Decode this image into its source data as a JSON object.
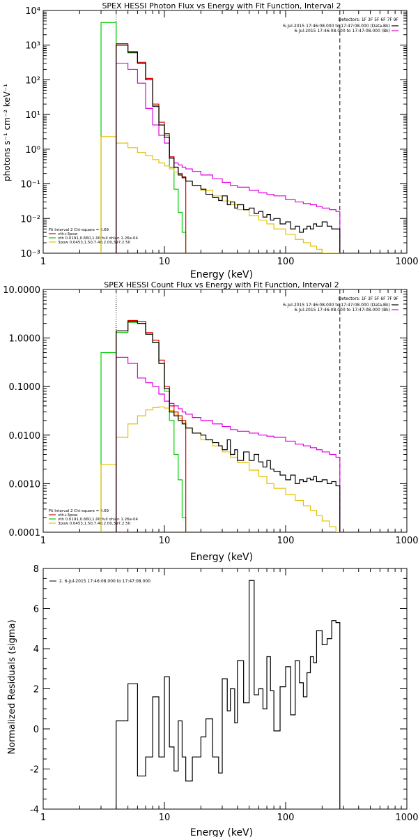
{
  "figure": {
    "panel1": {
      "title": "SPEX HESSI Photon Flux vs Energy with Fit Function, Interval 2",
      "xlabel": "Energy (keV)",
      "ylabel": "photons s⁻¹ cm⁻² keV⁻¹",
      "detectors": "Detectors: 1F 3F 5F 6F 7F 9F",
      "legend_right": [
        {
          "text": "6-Jul-2015 17:46:08.000 to 17:47:08.000 (Data-Bk)",
          "color": "#000000"
        },
        {
          "text": "6-Jul-2015 17:46:08.000 to 17:47:08.000 (Bk)",
          "color": "#e000e0"
        }
      ],
      "legend_left": [
        {
          "text": "Fit Interval  2    Chi-square = 0.69",
          "color": null
        },
        {
          "text": "vth+3pow",
          "color": "#dd0000"
        },
        {
          "text": "vth 0.0191,0.660,1.00  full ohian 1.26e-04",
          "color": "#00cc00"
        },
        {
          "text": "3pow 0.0453,1.50,7.40,2.00,397,2.50",
          "color": "#e6c000"
        }
      ]
    },
    "panel2": {
      "title": "SPEX HESSI Count Flux vs Energy with Fit Function, Interval 2",
      "xlabel": "Energy (keV)",
      "detectors": "Detectors: 1F 3F 5F 6F 7F 9F",
      "legend_right": [
        {
          "text": "6-Jul-2015 17:46:08.000 to 17:47:08.000 (Data-Bk)",
          "color": "#000000"
        },
        {
          "text": "6-Jul-2015 17:46:08.000 to 17:47:08.000 (Bk)",
          "color": "#e000e0"
        }
      ],
      "legend_left": [
        {
          "text": "Fit Interval  2    Chi-square = 0.69",
          "color": null
        },
        {
          "text": "vth+3pow",
          "color": "#dd0000"
        },
        {
          "text": "vth 0.0191,0.660,1.00  full ohian 1.26e-04",
          "color": "#00cc00"
        },
        {
          "text": "3pow 0.0453,1.50,7.40,2.00,397,2.50",
          "color": "#e6c000"
        }
      ]
    },
    "panel3": {
      "xlabel": "Energy (keV)",
      "ylabel": "Normalized Residuals (sigma)",
      "legend": "2. 6-Jul-2015 17:46:08.000 to 17:47:08.000"
    }
  },
  "chart_data": [
    {
      "type": "line",
      "step": true,
      "title": "SPEX HESSI Photon Flux vs Energy with Fit Function, Interval 2",
      "xlabel": "Energy (keV)",
      "ylabel": "photons s⁻¹ cm⁻² keV⁻¹",
      "xscale": "log",
      "yscale": "log",
      "xlim": [
        1,
        1000
      ],
      "ylim": [
        0.001,
        10000
      ],
      "xticks": [
        "1",
        "10",
        "100",
        "1000"
      ],
      "yticks": [
        "10⁻³",
        "10⁻²",
        "10⁻¹",
        "10⁰",
        "10¹",
        "10²",
        "10³",
        "10⁴"
      ],
      "vlines": [
        {
          "x": 4,
          "style": "dotted"
        },
        {
          "x": 280,
          "style": "dashed"
        }
      ],
      "series": [
        {
          "name": "vth",
          "color": "#00cc00",
          "edges": [
            3,
            4,
            5,
            6,
            7,
            8,
            9,
            10,
            11,
            12,
            13,
            14,
            15
          ],
          "values": [
            4500,
            1000,
            600,
            300,
            100,
            18,
            5,
            2.5,
            0.3,
            0.07,
            0.015,
            0.004
          ]
        },
        {
          "name": "3pow",
          "color": "#e6c000",
          "edges": [
            3,
            4,
            5,
            6,
            7,
            8,
            9,
            10,
            11,
            12,
            13,
            14,
            15,
            17,
            20,
            25,
            30,
            35,
            40,
            50,
            60,
            70,
            80,
            100,
            120,
            140,
            160,
            180,
            200,
            230,
            260,
            280
          ],
          "values": [
            2.3,
            1.5,
            1.1,
            0.8,
            0.65,
            0.5,
            0.4,
            0.33,
            0.27,
            0.22,
            0.18,
            0.15,
            0.12,
            0.09,
            0.065,
            0.045,
            0.032,
            0.025,
            0.018,
            0.012,
            0.009,
            0.007,
            0.005,
            0.0035,
            0.0025,
            0.002,
            0.0016,
            0.0013,
            0.001,
            0.0008,
            0.0007
          ]
        },
        {
          "name": "Bk",
          "color": "#e000e0",
          "edges": [
            4,
            5,
            6,
            7,
            8,
            9,
            10,
            11,
            12,
            13,
            14,
            15,
            17,
            20,
            25,
            30,
            35,
            40,
            50,
            60,
            70,
            80,
            100,
            120,
            140,
            160,
            180,
            200,
            230,
            260,
            280
          ],
          "values": [
            300,
            200,
            80,
            15,
            5,
            2.5,
            1.5,
            0.6,
            0.4,
            0.35,
            0.3,
            0.27,
            0.23,
            0.18,
            0.14,
            0.11,
            0.09,
            0.08,
            0.065,
            0.055,
            0.05,
            0.045,
            0.035,
            0.03,
            0.027,
            0.025,
            0.022,
            0.02,
            0.018,
            0.016
          ]
        },
        {
          "name": "vth+3pow",
          "color": "#dd0000",
          "edges": [
            4,
            5,
            6,
            7,
            8,
            9,
            10,
            11,
            12,
            13,
            14,
            15
          ],
          "values": [
            1100,
            650,
            320,
            110,
            20,
            6,
            2.8,
            0.6,
            0.3,
            0.2,
            0.16
          ]
        },
        {
          "name": "Data-Bk",
          "color": "#000000",
          "edges": [
            4,
            5,
            6,
            7,
            8,
            9,
            10,
            11,
            12,
            13,
            14,
            15,
            17,
            20,
            22,
            25,
            28,
            30,
            33,
            35,
            38,
            40,
            45,
            50,
            55,
            60,
            65,
            70,
            75,
            80,
            90,
            100,
            110,
            120,
            130,
            140,
            150,
            160,
            170,
            180,
            200,
            220,
            240,
            260,
            280
          ],
          "values": [
            1000,
            620,
            300,
            100,
            17,
            5,
            2.2,
            0.55,
            0.3,
            0.18,
            0.15,
            0.12,
            0.09,
            0.07,
            0.05,
            0.04,
            0.033,
            0.045,
            0.025,
            0.03,
            0.02,
            0.025,
            0.018,
            0.02,
            0.014,
            0.016,
            0.011,
            0.013,
            0.009,
            0.01,
            0.007,
            0.008,
            0.005,
            0.006,
            0.004,
            0.005,
            0.006,
            0.005,
            0.007,
            0.006,
            0.008,
            0.006,
            0.005,
            0.005
          ]
        }
      ]
    },
    {
      "type": "line",
      "step": true,
      "title": "SPEX HESSI Count Flux vs Energy with Fit Function, Interval 2",
      "xlabel": "Energy (keV)",
      "xscale": "log",
      "yscale": "log",
      "xlim": [
        1,
        1000
      ],
      "ylim": [
        0.0001,
        10
      ],
      "xticks": [
        "1",
        "10",
        "100",
        "1000"
      ],
      "yticks": [
        "0.0001",
        "0.0010",
        "0.0100",
        "0.1000",
        "1.0000",
        "10.0000"
      ],
      "vlines": [
        {
          "x": 4,
          "style": "dotted"
        },
        {
          "x": 280,
          "style": "dashed"
        }
      ],
      "series": [
        {
          "name": "vth",
          "color": "#00cc00",
          "edges": [
            3,
            4,
            5,
            6,
            7,
            8,
            9,
            10,
            11,
            12,
            13,
            14,
            15
          ],
          "values": [
            0.5,
            1.3,
            2.1,
            2.0,
            1.2,
            0.8,
            0.3,
            0.08,
            0.02,
            0.004,
            0.0012,
            0.0002
          ]
        },
        {
          "name": "3pow",
          "color": "#e6c000",
          "edges": [
            3,
            4,
            5,
            6,
            7,
            8,
            9,
            10,
            11,
            12,
            13,
            14,
            15,
            17,
            20,
            25,
            30,
            35,
            40,
            50,
            60,
            70,
            80,
            100,
            120,
            140,
            160,
            180,
            200,
            230,
            260,
            280
          ],
          "values": [
            0.0025,
            0.009,
            0.017,
            0.025,
            0.033,
            0.037,
            0.038,
            0.036,
            0.032,
            0.027,
            0.022,
            0.018,
            0.014,
            0.011,
            0.008,
            0.006,
            0.0045,
            0.0035,
            0.0027,
            0.0019,
            0.0014,
            0.001,
            0.0008,
            0.0006,
            0.00045,
            0.00035,
            0.00028,
            0.00022,
            0.00017,
            0.00013,
            0.0001
          ]
        },
        {
          "name": "Bk",
          "color": "#e000e0",
          "edges": [
            4,
            5,
            6,
            7,
            8,
            9,
            10,
            11,
            12,
            13,
            14,
            15,
            17,
            20,
            25,
            30,
            35,
            40,
            50,
            60,
            70,
            80,
            100,
            120,
            140,
            160,
            180,
            200,
            230,
            260,
            280
          ],
          "values": [
            0.4,
            0.3,
            0.15,
            0.12,
            0.1,
            0.07,
            0.05,
            0.045,
            0.04,
            0.035,
            0.03,
            0.027,
            0.023,
            0.02,
            0.017,
            0.015,
            0.013,
            0.012,
            0.011,
            0.01,
            0.0095,
            0.009,
            0.0075,
            0.0065,
            0.006,
            0.0055,
            0.005,
            0.0045,
            0.004,
            0.0035
          ]
        },
        {
          "name": "vth+3pow",
          "color": "#dd0000",
          "edges": [
            4,
            5,
            6,
            7,
            8,
            9,
            10,
            11,
            12,
            13,
            14,
            15
          ],
          "values": [
            1.4,
            2.3,
            2.2,
            1.3,
            0.9,
            0.35,
            0.1,
            0.04,
            0.03,
            0.025,
            0.02
          ]
        },
        {
          "name": "Data-Bk",
          "color": "#000000",
          "edges": [
            4,
            5,
            6,
            7,
            8,
            9,
            10,
            11,
            12,
            13,
            14,
            15,
            17,
            20,
            22,
            25,
            28,
            30,
            33,
            35,
            38,
            40,
            45,
            50,
            55,
            60,
            65,
            70,
            75,
            80,
            90,
            100,
            110,
            120,
            130,
            140,
            150,
            160,
            170,
            180,
            200,
            220,
            240,
            260,
            280
          ],
          "values": [
            1.4,
            2.2,
            2.0,
            1.2,
            0.8,
            0.3,
            0.09,
            0.03,
            0.025,
            0.02,
            0.017,
            0.014,
            0.011,
            0.01,
            0.008,
            0.007,
            0.006,
            0.005,
            0.008,
            0.004,
            0.005,
            0.003,
            0.0045,
            0.003,
            0.004,
            0.0028,
            0.0022,
            0.003,
            0.002,
            0.0018,
            0.0015,
            0.0012,
            0.0015,
            0.001,
            0.0012,
            0.0011,
            0.0013,
            0.0012,
            0.0014,
            0.0011,
            0.0012,
            0.001,
            0.0011,
            0.0009
          ]
        }
      ]
    },
    {
      "type": "line",
      "step": true,
      "xlabel": "Energy (keV)",
      "ylabel": "Normalized Residuals (sigma)",
      "xscale": "log",
      "xlim": [
        1,
        1000
      ],
      "ylim": [
        -4,
        8
      ],
      "xticks": [
        "1",
        "10",
        "100",
        "1000"
      ],
      "yticks": [
        "-4",
        "-2",
        "0",
        "2",
        "4",
        "6",
        "8"
      ],
      "series": [
        {
          "name": "2. 6-Jul-2015 17:46:08.000 to 17:47:08.000",
          "color": "#000000",
          "edges": [
            4,
            5,
            6,
            7,
            8,
            9,
            10,
            11,
            12,
            13,
            14,
            15,
            17,
            20,
            22,
            25,
            28,
            30,
            33,
            35,
            38,
            40,
            45,
            50,
            55,
            60,
            65,
            70,
            75,
            80,
            90,
            100,
            110,
            120,
            130,
            140,
            150,
            160,
            170,
            180,
            200,
            220,
            240,
            260,
            280
          ],
          "values": [
            0.4,
            2.25,
            -2.35,
            -1.4,
            1.6,
            -1.4,
            2.6,
            -0.9,
            -2.1,
            0.4,
            -1.4,
            -2.6,
            -1.4,
            -0.4,
            0.5,
            -1.4,
            -2.2,
            2.5,
            0.9,
            2.0,
            0.3,
            3.4,
            1.3,
            7.4,
            1.7,
            2.0,
            1.0,
            3.6,
            1.9,
            -0.1,
            2.1,
            3.1,
            0.7,
            3.4,
            2.3,
            1.6,
            2.8,
            3.6,
            3.3,
            4.9,
            4.2,
            4.5,
            5.4,
            5.3
          ]
        }
      ]
    }
  ]
}
